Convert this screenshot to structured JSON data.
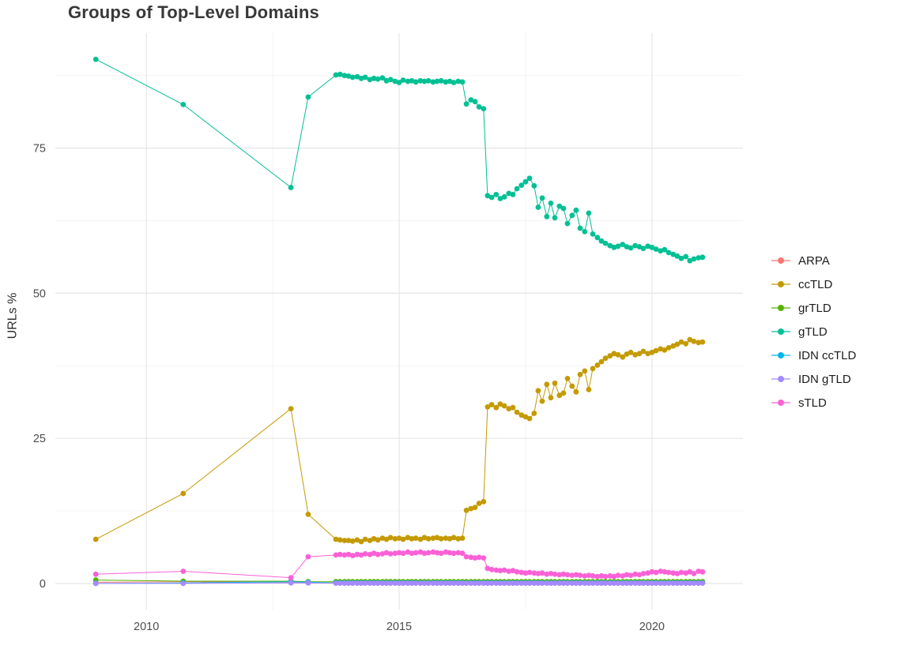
{
  "chart_data": {
    "type": "line",
    "title": "Groups of Top-Level Domains",
    "xlabel": "",
    "ylabel": "URLs %",
    "x_ticks": [
      2010,
      2015,
      2020
    ],
    "x_minor": [
      2012.5,
      2017.5
    ],
    "y_ticks": [
      0,
      25,
      50,
      75
    ],
    "y_minor": [
      12.5,
      37.5,
      62.5,
      87.5
    ],
    "xlim": [
      2008.2,
      2021.8
    ],
    "ylim": [
      -4.5,
      94.8
    ],
    "grid": true,
    "grid_major_color": "#E3E3E3",
    "grid_minor_color": "#F0F0F0",
    "tick_label_color": "#4D4D4D",
    "background_color": "#FFFFFF",
    "legend_position": "right",
    "x": [
      2009.0,
      2010.73,
      2012.86,
      2013.2,
      2013.75,
      2013.83,
      2013.92,
      2014.0,
      2014.08,
      2014.17,
      2014.25,
      2014.33,
      2014.42,
      2014.5,
      2014.58,
      2014.67,
      2014.75,
      2014.83,
      2014.92,
      2015.0,
      2015.08,
      2015.17,
      2015.25,
      2015.33,
      2015.42,
      2015.5,
      2015.58,
      2015.67,
      2015.75,
      2015.83,
      2015.92,
      2016.0,
      2016.08,
      2016.17,
      2016.25,
      2016.33,
      2016.42,
      2016.5,
      2016.58,
      2016.67,
      2016.75,
      2016.83,
      2016.92,
      2017.0,
      2017.08,
      2017.17,
      2017.25,
      2017.33,
      2017.42,
      2017.5,
      2017.58,
      2017.67,
      2017.75,
      2017.83,
      2017.92,
      2018.0,
      2018.08,
      2018.17,
      2018.25,
      2018.33,
      2018.42,
      2018.5,
      2018.58,
      2018.67,
      2018.75,
      2018.83,
      2018.92,
      2019.0,
      2019.08,
      2019.17,
      2019.25,
      2019.33,
      2019.42,
      2019.5,
      2019.58,
      2019.67,
      2019.75,
      2019.83,
      2019.92,
      2020.0,
      2020.08,
      2020.17,
      2020.25,
      2020.33,
      2020.42,
      2020.5,
      2020.58,
      2020.67,
      2020.75,
      2020.83,
      2020.92,
      2021.0
    ],
    "series": [
      {
        "name": "ARPA",
        "color": "#F8766D",
        "values": [
          0.2,
          0.3,
          0.2,
          0.1,
          0.1,
          0.1,
          0.1,
          0.1,
          0.1,
          0.1,
          0.1,
          0.1,
          0.1,
          0.1,
          0.1,
          0.1,
          0.1,
          0.1,
          0.1,
          0.1,
          0.1,
          0.1,
          0.1,
          0.1,
          0.1,
          0.1,
          0.1,
          0.1,
          0.1,
          0.1,
          0.1,
          0.1,
          0.1,
          0.1,
          0.1,
          0.1,
          0.1,
          0.1,
          0.1,
          0.1,
          0.1,
          0.1,
          0.1,
          0.1,
          0.1,
          0.1,
          0.1,
          0.1,
          0.1,
          0.1,
          0.1,
          0.1,
          0.1,
          0.1,
          0.1,
          0.1,
          0.1,
          0.1,
          0.1,
          0.1,
          0.1,
          0.1,
          0.1,
          0.1,
          0.1,
          0.1,
          0.1,
          0.1,
          0.1,
          0.1,
          0.1,
          0.1,
          0.1,
          0.1,
          0.1,
          0.1,
          0.1,
          0.1,
          0.1,
          0.1,
          0.1,
          0.1,
          0.1,
          0.1,
          0.1,
          0.1,
          0.1,
          0.1,
          0.1,
          0.1,
          0.1,
          0.1
        ]
      },
      {
        "name": "ccTLD",
        "color": "#C49A00",
        "values": [
          7.6,
          15.5,
          30.1,
          11.9,
          7.6,
          7.5,
          7.4,
          7.4,
          7.3,
          7.5,
          7.2,
          7.6,
          7.4,
          7.7,
          7.5,
          7.8,
          7.6,
          7.9,
          7.7,
          7.8,
          7.6,
          7.9,
          7.7,
          7.8,
          7.6,
          7.9,
          7.7,
          7.8,
          7.9,
          7.7,
          7.8,
          7.7,
          7.9,
          7.7,
          7.8,
          12.6,
          12.9,
          13.1,
          13.8,
          14.1,
          30.4,
          30.8,
          30.3,
          30.9,
          30.6,
          30.1,
          30.3,
          29.5,
          29.0,
          28.7,
          28.4,
          29.3,
          33.2,
          31.4,
          34.3,
          32.0,
          34.5,
          32.4,
          32.8,
          35.3,
          34.0,
          33.0,
          36.0,
          36.6,
          33.4,
          37.0,
          37.6,
          38.2,
          38.8,
          39.2,
          39.6,
          39.4,
          39.0,
          39.5,
          39.8,
          39.4,
          39.6,
          40.0,
          39.6,
          39.8,
          40.1,
          40.4,
          40.2,
          40.6,
          40.9,
          41.2,
          41.6,
          41.3,
          42.0,
          41.7,
          41.5,
          41.6
        ]
      },
      {
        "name": "grTLD",
        "color": "#53B400",
        "values": [
          0.6,
          0.4,
          0.4,
          0.3,
          0.3,
          0.3,
          0.3,
          0.3,
          0.3,
          0.3,
          0.3,
          0.3,
          0.3,
          0.3,
          0.3,
          0.3,
          0.3,
          0.3,
          0.3,
          0.3,
          0.3,
          0.3,
          0.3,
          0.3,
          0.3,
          0.3,
          0.3,
          0.3,
          0.3,
          0.3,
          0.3,
          0.3,
          0.3,
          0.3,
          0.3,
          0.3,
          0.3,
          0.3,
          0.3,
          0.3,
          0.3,
          0.3,
          0.3,
          0.3,
          0.3,
          0.3,
          0.3,
          0.3,
          0.3,
          0.3,
          0.3,
          0.3,
          0.3,
          0.3,
          0.3,
          0.3,
          0.3,
          0.3,
          0.3,
          0.3,
          0.3,
          0.3,
          0.3,
          0.3,
          0.3,
          0.3,
          0.3,
          0.3,
          0.3,
          0.3,
          0.3,
          0.3,
          0.3,
          0.3,
          0.3,
          0.3,
          0.3,
          0.3,
          0.3,
          0.3,
          0.3,
          0.3,
          0.3,
          0.3,
          0.3,
          0.3,
          0.3,
          0.3,
          0.3,
          0.3,
          0.3,
          0.3
        ]
      },
      {
        "name": "gTLD",
        "color": "#00C094",
        "values": [
          90.3,
          82.5,
          68.2,
          83.8,
          87.6,
          87.7,
          87.5,
          87.4,
          87.2,
          87.3,
          87.0,
          87.2,
          86.8,
          87.0,
          86.9,
          87.1,
          86.6,
          86.8,
          86.5,
          86.3,
          86.7,
          86.5,
          86.6,
          86.4,
          86.6,
          86.5,
          86.6,
          86.4,
          86.5,
          86.6,
          86.4,
          86.5,
          86.3,
          86.5,
          86.4,
          82.6,
          83.3,
          83.0,
          82.1,
          81.8,
          66.8,
          66.5,
          67.0,
          66.3,
          66.6,
          67.2,
          67.0,
          68.0,
          68.6,
          69.2,
          69.8,
          68.5,
          64.8,
          66.4,
          63.2,
          65.5,
          63.0,
          65.0,
          64.6,
          62.0,
          63.4,
          64.3,
          61.2,
          60.6,
          63.8,
          60.2,
          59.6,
          59.0,
          58.6,
          58.2,
          57.9,
          58.1,
          58.4,
          58.0,
          57.8,
          58.2,
          58.0,
          57.7,
          58.1,
          57.9,
          57.6,
          57.3,
          57.5,
          57.0,
          56.7,
          56.4,
          56.0,
          56.3,
          55.6,
          55.9,
          56.1,
          56.2
        ]
      },
      {
        "name": "IDN ccTLD",
        "color": "#00B6EB",
        "values": [
          0.0,
          0.1,
          0.3,
          0.2,
          0.1,
          0.1,
          0.1,
          0.1,
          0.1,
          0.1,
          0.1,
          0.1,
          0.1,
          0.1,
          0.1,
          0.1,
          0.1,
          0.1,
          0.1,
          0.1,
          0.1,
          0.1,
          0.1,
          0.1,
          0.1,
          0.1,
          0.1,
          0.1,
          0.1,
          0.1,
          0.1,
          0.1,
          0.1,
          0.1,
          0.1,
          0.1,
          0.1,
          0.1,
          0.1,
          0.1,
          0.1,
          0.1,
          0.1,
          0.1,
          0.1,
          0.1,
          0.1,
          0.1,
          0.1,
          0.1,
          0.1,
          0.1,
          0.1,
          0.1,
          0.1,
          0.1,
          0.1,
          0.1,
          0.1,
          0.1,
          0.1,
          0.1,
          0.1,
          0.1,
          0.1,
          0.1,
          0.1,
          0.1,
          0.1,
          0.1,
          0.1,
          0.1,
          0.1,
          0.1,
          0.1,
          0.1,
          0.1,
          0.1,
          0.1,
          0.1,
          0.1,
          0.1,
          0.1,
          0.1,
          0.1,
          0.1,
          0.1,
          0.1,
          0.1,
          0.1,
          0.1,
          0.1
        ]
      },
      {
        "name": "IDN gTLD",
        "color": "#A58AFF",
        "values": [
          0.0,
          0.0,
          0.1,
          0.1,
          0.05,
          0.05,
          0.05,
          0.05,
          0.05,
          0.05,
          0.05,
          0.05,
          0.05,
          0.05,
          0.05,
          0.05,
          0.05,
          0.05,
          0.05,
          0.05,
          0.05,
          0.05,
          0.05,
          0.05,
          0.05,
          0.05,
          0.05,
          0.05,
          0.05,
          0.05,
          0.05,
          0.05,
          0.05,
          0.05,
          0.05,
          0.05,
          0.05,
          0.05,
          0.05,
          0.05,
          0.05,
          0.05,
          0.05,
          0.05,
          0.05,
          0.05,
          0.05,
          0.05,
          0.05,
          0.05,
          0.05,
          0.05,
          0.05,
          0.05,
          0.05,
          0.05,
          0.05,
          0.05,
          0.05,
          0.05,
          0.05,
          0.05,
          0.05,
          0.05,
          0.05,
          0.05,
          0.05,
          0.05,
          0.05,
          0.05,
          0.05,
          0.05,
          0.05,
          0.05,
          0.05,
          0.05,
          0.05,
          0.05,
          0.05,
          0.05,
          0.05,
          0.05,
          0.05,
          0.05,
          0.05,
          0.05,
          0.05,
          0.05,
          0.05,
          0.05,
          0.05,
          0.05
        ]
      },
      {
        "name": "sTLD",
        "color": "#FB61D7",
        "values": [
          1.6,
          2.1,
          1.0,
          4.6,
          4.9,
          5.0,
          4.9,
          5.0,
          4.8,
          5.0,
          4.9,
          5.1,
          5.0,
          5.2,
          5.0,
          5.1,
          5.3,
          5.1,
          5.2,
          5.3,
          5.2,
          5.4,
          5.2,
          5.3,
          5.4,
          5.2,
          5.3,
          5.4,
          5.3,
          5.2,
          5.4,
          5.3,
          5.2,
          5.3,
          5.2,
          4.6,
          4.5,
          4.4,
          4.5,
          4.4,
          2.6,
          2.4,
          2.3,
          2.2,
          2.3,
          2.1,
          2.2,
          2.0,
          1.9,
          1.8,
          1.9,
          1.8,
          1.7,
          1.8,
          1.6,
          1.7,
          1.6,
          1.5,
          1.6,
          1.5,
          1.4,
          1.5,
          1.4,
          1.3,
          1.4,
          1.3,
          1.2,
          1.3,
          1.2,
          1.3,
          1.2,
          1.4,
          1.3,
          1.5,
          1.4,
          1.6,
          1.5,
          1.7,
          1.8,
          2.0,
          1.9,
          2.1,
          2.0,
          1.9,
          1.8,
          1.7,
          1.9,
          1.8,
          2.0,
          1.7,
          2.1,
          2.0
        ]
      }
    ]
  }
}
